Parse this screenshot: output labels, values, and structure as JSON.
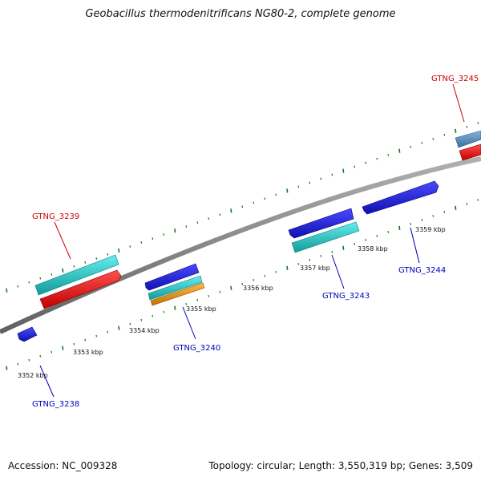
{
  "title": "Geobacillus thermodenitrificans NG80-2, complete genome",
  "accession_text": "Accession: NC_009328",
  "topology_text": "Topology: circular; Length: 3,550,319 bp; Genes: 3,509",
  "colors": {
    "backbone": "#8a8a8a",
    "tick": "#1a7a1a",
    "forward_label": "#cc0000",
    "reverse_label": "#0000bb",
    "cds_blue": "#2222dd",
    "cds_cyan": "#22cccc",
    "cds_red": "#ee1111",
    "cds_orange": "#ee9911",
    "cds_steel": "#5a8fbf"
  },
  "scale": {
    "ticks": [
      {
        "label": "3352 kbp"
      },
      {
        "label": "3353 kbp"
      },
      {
        "label": "3354 kbp"
      },
      {
        "label": "3355 kbp"
      },
      {
        "label": "3356 kbp"
      },
      {
        "label": "3357 kbp"
      },
      {
        "label": "3358 kbp"
      },
      {
        "label": "3359 kbp"
      }
    ]
  },
  "genes": [
    {
      "label": "GTNG_3239",
      "strand": "forward"
    },
    {
      "label": "GTNG_3245",
      "strand": "forward"
    },
    {
      "label": "GTNG_3238",
      "strand": "reverse"
    },
    {
      "label": "GTNG_3240",
      "strand": "reverse"
    },
    {
      "label": "GTNG_3243",
      "strand": "reverse"
    },
    {
      "label": "GTNG_3244",
      "strand": "reverse"
    }
  ]
}
